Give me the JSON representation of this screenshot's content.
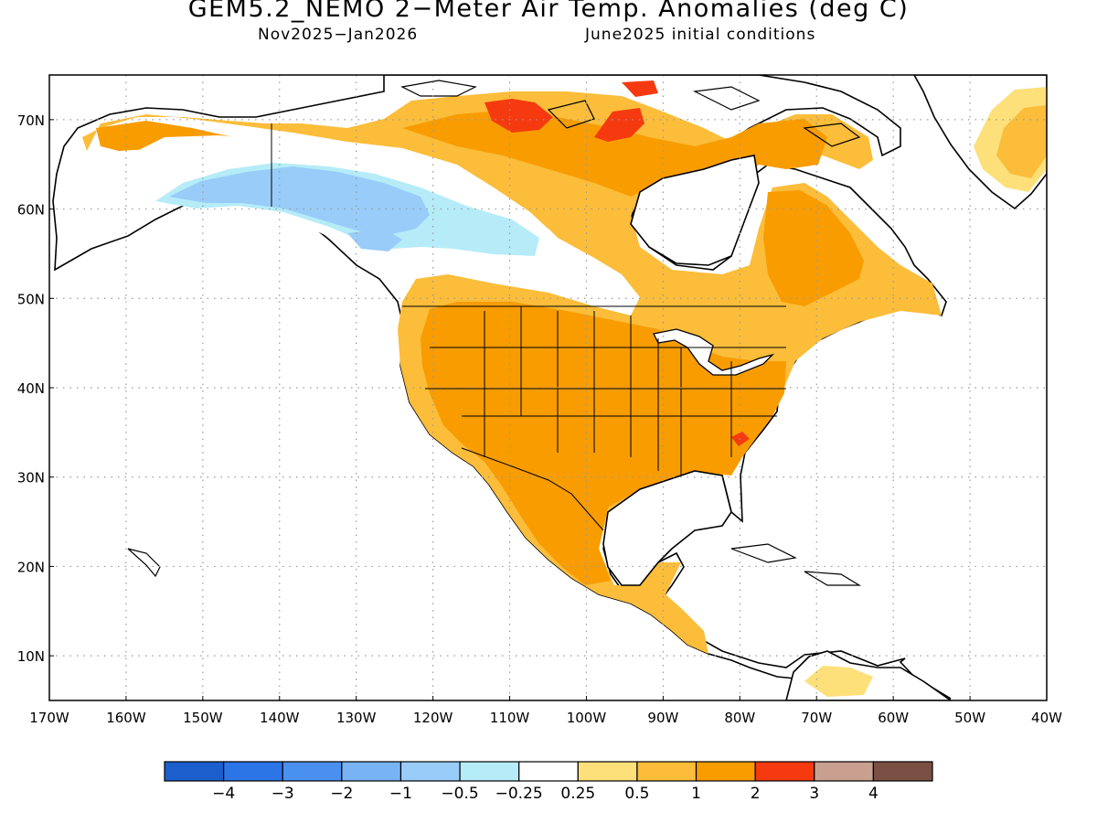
{
  "title": "GEM5.2_NEMO 2−Meter Air Temp. Anomalies (deg C)",
  "subtitle_left": "Nov2025−Jan2026",
  "subtitle_right": "June2025 initial conditions",
  "map": {
    "lon_range": [
      -170,
      -40
    ],
    "lat_range": [
      5,
      75
    ],
    "lat_ticks": [
      "10N",
      "20N",
      "30N",
      "40N",
      "50N",
      "60N",
      "70N"
    ],
    "lon_ticks": [
      "170W",
      "160W",
      "150W",
      "140W",
      "130W",
      "120W",
      "110W",
      "100W",
      "90W",
      "80W",
      "70W",
      "60W",
      "50W",
      "40W"
    ],
    "grid": "dotted"
  },
  "colorbar": {
    "colors": [
      "#1a5fcc",
      "#2b75e6",
      "#4a90f0",
      "#78b4f5",
      "#99ccf8",
      "#b5ecf8",
      "#ffffff",
      "#fde07a",
      "#fbbd3a",
      "#f89c00",
      "#f53a10",
      "#c9a090",
      "#7a5044"
    ],
    "labels": [
      "−4",
      "−3",
      "−2",
      "−1",
      "−0.5",
      "−0.25",
      "0.25",
      "0.5",
      "1",
      "2",
      "3",
      "4"
    ]
  }
}
